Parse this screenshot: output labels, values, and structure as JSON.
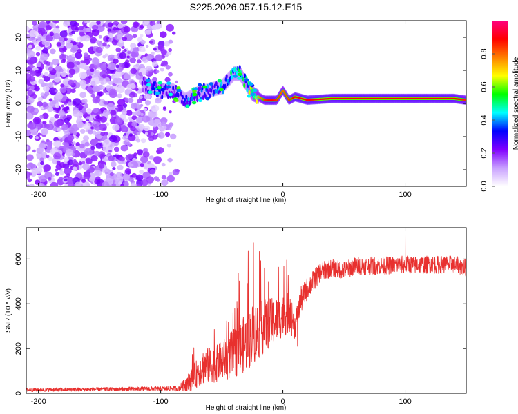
{
  "title": "S225.2026.057.15.12.E15",
  "chart_data": [
    {
      "type": "heatmap",
      "name": "spectrogram",
      "xlabel": "Height of straight line (km)",
      "ylabel": "Frequency (Hz)",
      "xlim": [
        -210,
        150
      ],
      "ylim": [
        -25,
        25
      ],
      "xticks": [
        -200,
        -100,
        0,
        100
      ],
      "yticks": [
        -20,
        -10,
        0,
        10,
        20
      ],
      "colorbar": {
        "label": "Normalized spectral amplitude",
        "range": [
          0,
          1
        ],
        "ticks": [
          0.0,
          0.2,
          0.4,
          0.6,
          0.8
        ],
        "tick_labels": [
          "0.0",
          "0.2",
          "0.4",
          "0.6",
          "0.8"
        ],
        "colors": [
          "#ffffff",
          "#c8a0ff",
          "#8000ff",
          "#0000ff",
          "#00ffff",
          "#00ff00",
          "#ffff00",
          "#ff8000",
          "#ff0000",
          "#ff0080"
        ]
      },
      "noise_region": {
        "x": [
          -210,
          -85
        ],
        "y": [
          -25,
          25
        ],
        "typical_amplitude": 0.15
      },
      "ridge": {
        "x": [
          -115,
          -100,
          -90,
          -80,
          -70,
          -60,
          -50,
          -40,
          -35,
          -30,
          -25,
          -20,
          -15,
          -10,
          -5,
          0,
          5,
          10,
          20,
          40,
          60,
          80,
          95,
          100,
          120,
          140,
          150
        ],
        "freq": [
          6,
          4,
          4,
          1,
          3,
          4,
          5,
          9,
          9,
          6,
          3,
          2,
          1,
          1,
          1,
          4,
          1,
          2,
          1,
          1.5,
          1.5,
          1.5,
          1.5,
          1.5,
          1.5,
          1.5,
          1
        ],
        "amplitude": [
          0.25,
          0.3,
          0.3,
          0.35,
          0.35,
          0.35,
          0.4,
          0.45,
          0.45,
          0.5,
          0.6,
          0.7,
          0.8,
          0.85,
          0.8,
          0.75,
          0.8,
          0.85,
          0.85,
          0.85,
          0.85,
          0.85,
          0.85,
          0.85,
          0.85,
          0.85,
          0.8
        ]
      }
    },
    {
      "type": "line",
      "name": "snr",
      "xlabel": "Height of straight line (km)",
      "ylabel": "SNR (10 * v/v)",
      "xlim": [
        -210,
        150
      ],
      "ylim": [
        0,
        740
      ],
      "xticks": [
        -200,
        -100,
        0,
        100
      ],
      "yticks": [
        0,
        200,
        400,
        600
      ],
      "series": [
        {
          "name": "SNR",
          "color": "#e8302e",
          "x": [
            -210,
            -150,
            -100,
            -85,
            -75,
            -65,
            -55,
            -45,
            -35,
            -25,
            -15,
            -5,
            5,
            10,
            15,
            20,
            25,
            30,
            40,
            50,
            60,
            80,
            100,
            120,
            140,
            150
          ],
          "y": [
            15,
            18,
            20,
            22,
            60,
            120,
            130,
            160,
            200,
            260,
            300,
            330,
            360,
            300,
            420,
            470,
            500,
            540,
            560,
            550,
            570,
            570,
            575,
            575,
            575,
            560
          ],
          "noise": [
            8,
            8,
            10,
            12,
            50,
            80,
            80,
            100,
            120,
            140,
            120,
            100,
            90,
            60,
            60,
            50,
            50,
            45,
            40,
            40,
            40,
            40,
            40,
            40,
            40,
            40
          ],
          "spikes": [
            {
              "x": 100,
              "y": 740
            },
            {
              "x": 100,
              "y": 380
            },
            {
              "x": 12,
              "y": 210
            }
          ]
        }
      ]
    }
  ]
}
